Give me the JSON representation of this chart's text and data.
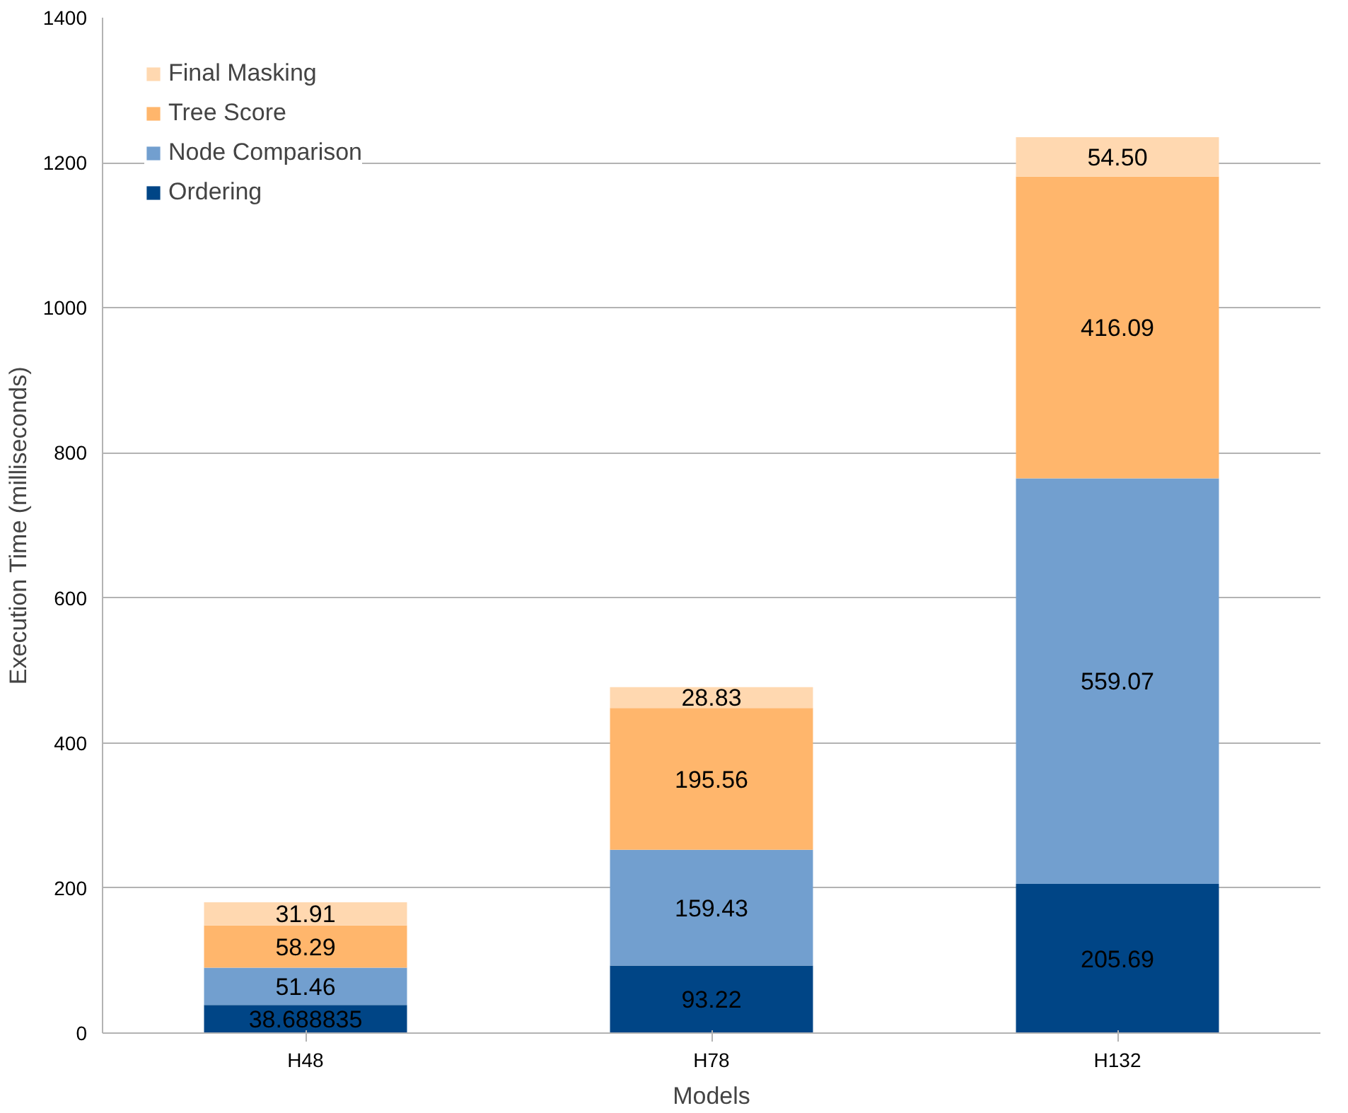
{
  "chart_data": {
    "type": "bar",
    "stacked": true,
    "xlabel": "Models",
    "ylabel": "Execution Time (milliseconds)",
    "categories": [
      "H48",
      "H78",
      "H132"
    ],
    "series": [
      {
        "name": "Ordering",
        "color": "#004586",
        "values": [
          38.688835,
          93.22,
          205.69
        ],
        "value_labels": [
          "38.688835",
          "93.22",
          "205.69"
        ]
      },
      {
        "name": "Node Comparison",
        "color": "#729fcf",
        "values": [
          51.46,
          159.43,
          559.07
        ],
        "value_labels": [
          "51.46",
          "159.43",
          "559.07"
        ]
      },
      {
        "name": "Tree Score",
        "color": "#ffb66c",
        "values": [
          58.29,
          195.56,
          416.09
        ],
        "value_labels": [
          "58.29",
          "195.56",
          "416.09"
        ]
      },
      {
        "name": "Final Masking",
        "color": "#ffd8b0",
        "values": [
          31.91,
          28.83,
          54.5
        ],
        "value_labels": [
          "31.91",
          "28.83",
          "54.50"
        ]
      }
    ],
    "ylim": [
      0,
      1400
    ],
    "yticks": [
      0,
      200,
      400,
      600,
      800,
      1000,
      1200,
      1400
    ],
    "grid": "y",
    "legend": "top left"
  }
}
